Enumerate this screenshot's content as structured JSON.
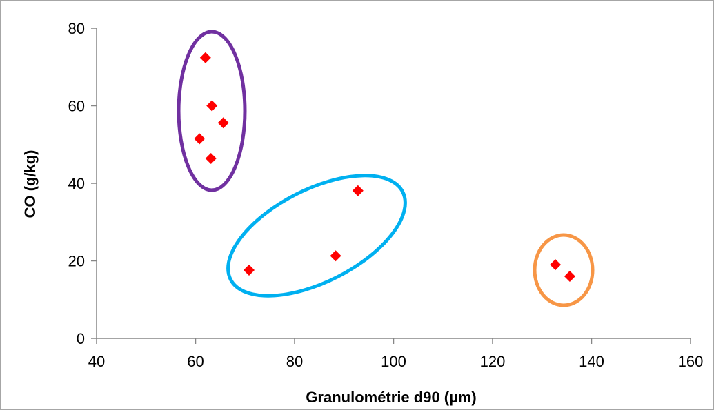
{
  "chart_data": {
    "type": "scatter",
    "title": "",
    "xlabel": "Granulométrie d90 (µm)",
    "ylabel": "CO (g/kg)",
    "xlim": [
      40,
      160
    ],
    "ylim": [
      0,
      80
    ],
    "x_ticks": [
      40,
      60,
      80,
      100,
      120,
      140,
      160
    ],
    "y_ticks": [
      0,
      20,
      40,
      60,
      80
    ],
    "grid": false,
    "legend": "none",
    "marker": "diamond",
    "marker_color": "#ff0000",
    "series": [
      {
        "x": [
          62.0,
          63.3,
          65.6,
          60.8,
          63.1,
          70.8,
          88.3,
          92.8,
          132.7,
          135.6
        ],
        "y": [
          72.4,
          60.0,
          55.6,
          51.5,
          46.4,
          17.6,
          21.3,
          38.1,
          19.0,
          16.0
        ]
      }
    ],
    "groups": [
      {
        "color": "#7030a0",
        "members": [
          0,
          1,
          2,
          3,
          4
        ]
      },
      {
        "color": "#00b0f0",
        "members": [
          5,
          6,
          7
        ]
      },
      {
        "color": "#f79646",
        "members": [
          8,
          9
        ]
      }
    ]
  }
}
